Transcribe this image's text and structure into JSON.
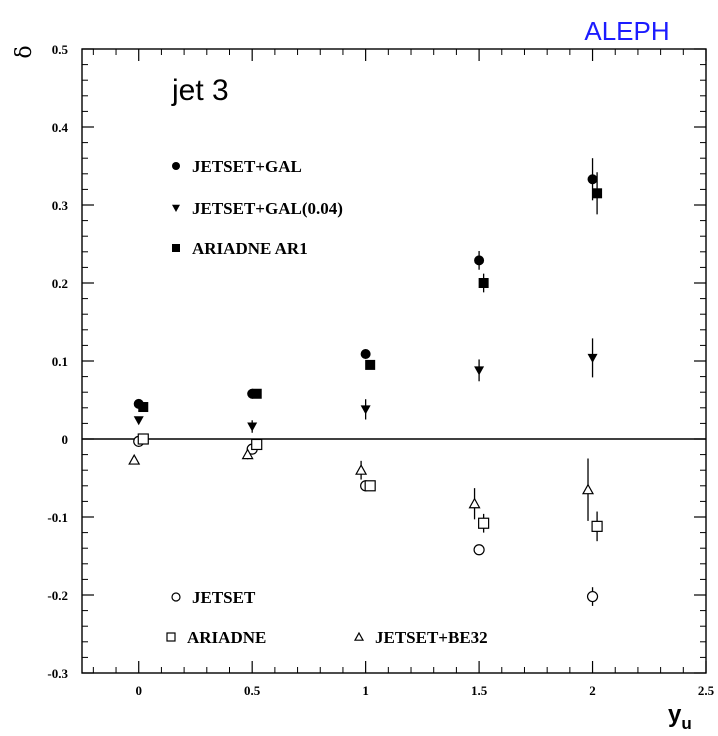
{
  "brand": "ALEPH",
  "chart_data": {
    "type": "scatter",
    "title": "",
    "annotation": "jet 3",
    "xlabel": "y",
    "xlabel_sub": "u",
    "ylabel": "δ",
    "xlim": [
      -0.25,
      2.5
    ],
    "ylim": [
      -0.3,
      0.5
    ],
    "x_ticks": [
      0,
      0.5,
      1,
      1.5,
      2,
      2.5
    ],
    "x_tick_labels": [
      "0",
      "0.5",
      "1",
      "1.5",
      "2",
      "2.5"
    ],
    "y_ticks": [
      -0.3,
      -0.2,
      -0.1,
      0,
      0.1,
      0.2,
      0.3,
      0.4,
      0.5
    ],
    "y_tick_labels": [
      "-0.3",
      "-0.2",
      "-0.1",
      "0",
      "0.1",
      "0.2",
      "0.3",
      "0.4",
      "0.5"
    ],
    "reference_line_y": 0,
    "grid": false,
    "series": [
      {
        "name": "JETSET+GAL",
        "marker": "circle-filled",
        "x": [
          0,
          0.5,
          1,
          1.5,
          2
        ],
        "y": [
          0.045,
          0.058,
          0.109,
          0.229,
          0.333
        ],
        "err": [
          0.004,
          0.004,
          0.005,
          0.012,
          0.027
        ]
      },
      {
        "name": "JETSET+GAL(0.04)",
        "marker": "triangle-down-filled",
        "x": [
          0,
          0.5,
          1,
          1.5,
          2
        ],
        "y": [
          0.024,
          0.016,
          0.038,
          0.088,
          0.104
        ],
        "err": [
          0.004,
          0.008,
          0.013,
          0.014,
          0.025
        ]
      },
      {
        "name": "ARIADNE AR1",
        "marker": "square-filled",
        "x": [
          0.02,
          0.52,
          1.02,
          1.52,
          2.02
        ],
        "y": [
          0.041,
          0.058,
          0.095,
          0.2,
          0.315
        ],
        "err": [
          0.004,
          0.004,
          0.005,
          0.012,
          0.027
        ]
      },
      {
        "name": "JETSET",
        "marker": "circle-open",
        "x": [
          0,
          0.5,
          1,
          1.5,
          2
        ],
        "y": [
          -0.003,
          -0.013,
          -0.06,
          -0.142,
          -0.202
        ],
        "err": [
          0.004,
          0.006,
          0.006,
          0.004,
          0.012
        ]
      },
      {
        "name": "ARIADNE",
        "marker": "square-open",
        "x": [
          0.02,
          0.52,
          1.02,
          1.52,
          2.02
        ],
        "y": [
          0,
          -0.007,
          -0.06,
          -0.108,
          -0.112
        ],
        "err": [
          0.004,
          0.006,
          0.006,
          0.012,
          0.019
        ]
      },
      {
        "name": "JETSET+BE32",
        "marker": "triangle-up-open",
        "x": [
          -0.02,
          0.48,
          0.98,
          1.48,
          1.98
        ],
        "y": [
          -0.027,
          -0.02,
          -0.04,
          -0.083,
          -0.065
        ],
        "err": [
          0,
          0.006,
          0.012,
          0.02,
          0.04
        ]
      }
    ],
    "legend": [
      {
        "series": 0,
        "label": "JETSET+GAL"
      },
      {
        "series": 1,
        "label": "JETSET+GAL(0.04)"
      },
      {
        "series": 2,
        "label": "ARIADNE AR1"
      },
      {
        "series": 3,
        "label": "JETSET"
      },
      {
        "series": 4,
        "label": "ARIADNE"
      },
      {
        "series": 5,
        "label": "JETSET+BE32"
      }
    ]
  }
}
